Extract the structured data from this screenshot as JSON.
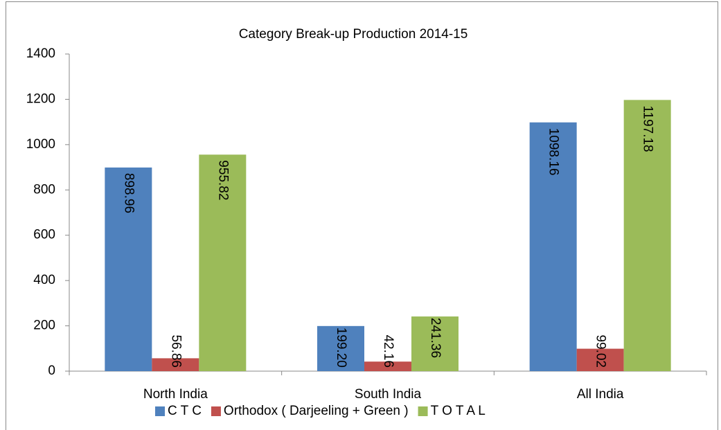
{
  "chart_data": {
    "type": "bar",
    "title": "Category Break-up Production 2014-15",
    "categories": [
      "North India",
      "South India",
      "All India"
    ],
    "series": [
      {
        "name": "C T C",
        "color": "#4f81bd",
        "values": [
          898.96,
          199.2,
          1098.16
        ],
        "value_labels": [
          "898.96",
          "199.20",
          "1098.16"
        ]
      },
      {
        "name": "Orthodox ( Darjeeling + Green )",
        "color": "#c0504d",
        "values": [
          56.86,
          42.16,
          99.02
        ],
        "value_labels": [
          "56.86",
          "42.16",
          "99.02"
        ]
      },
      {
        "name": "T O T A L",
        "color": "#9bbb59",
        "values": [
          955.82,
          241.36,
          1197.18
        ],
        "value_labels": [
          "955.82",
          "241.36",
          "1197.18"
        ]
      }
    ],
    "ylim": [
      0,
      1400
    ],
    "yticks": [
      0,
      200,
      400,
      600,
      800,
      1000,
      1200,
      1400
    ],
    "legend": "bottom"
  }
}
